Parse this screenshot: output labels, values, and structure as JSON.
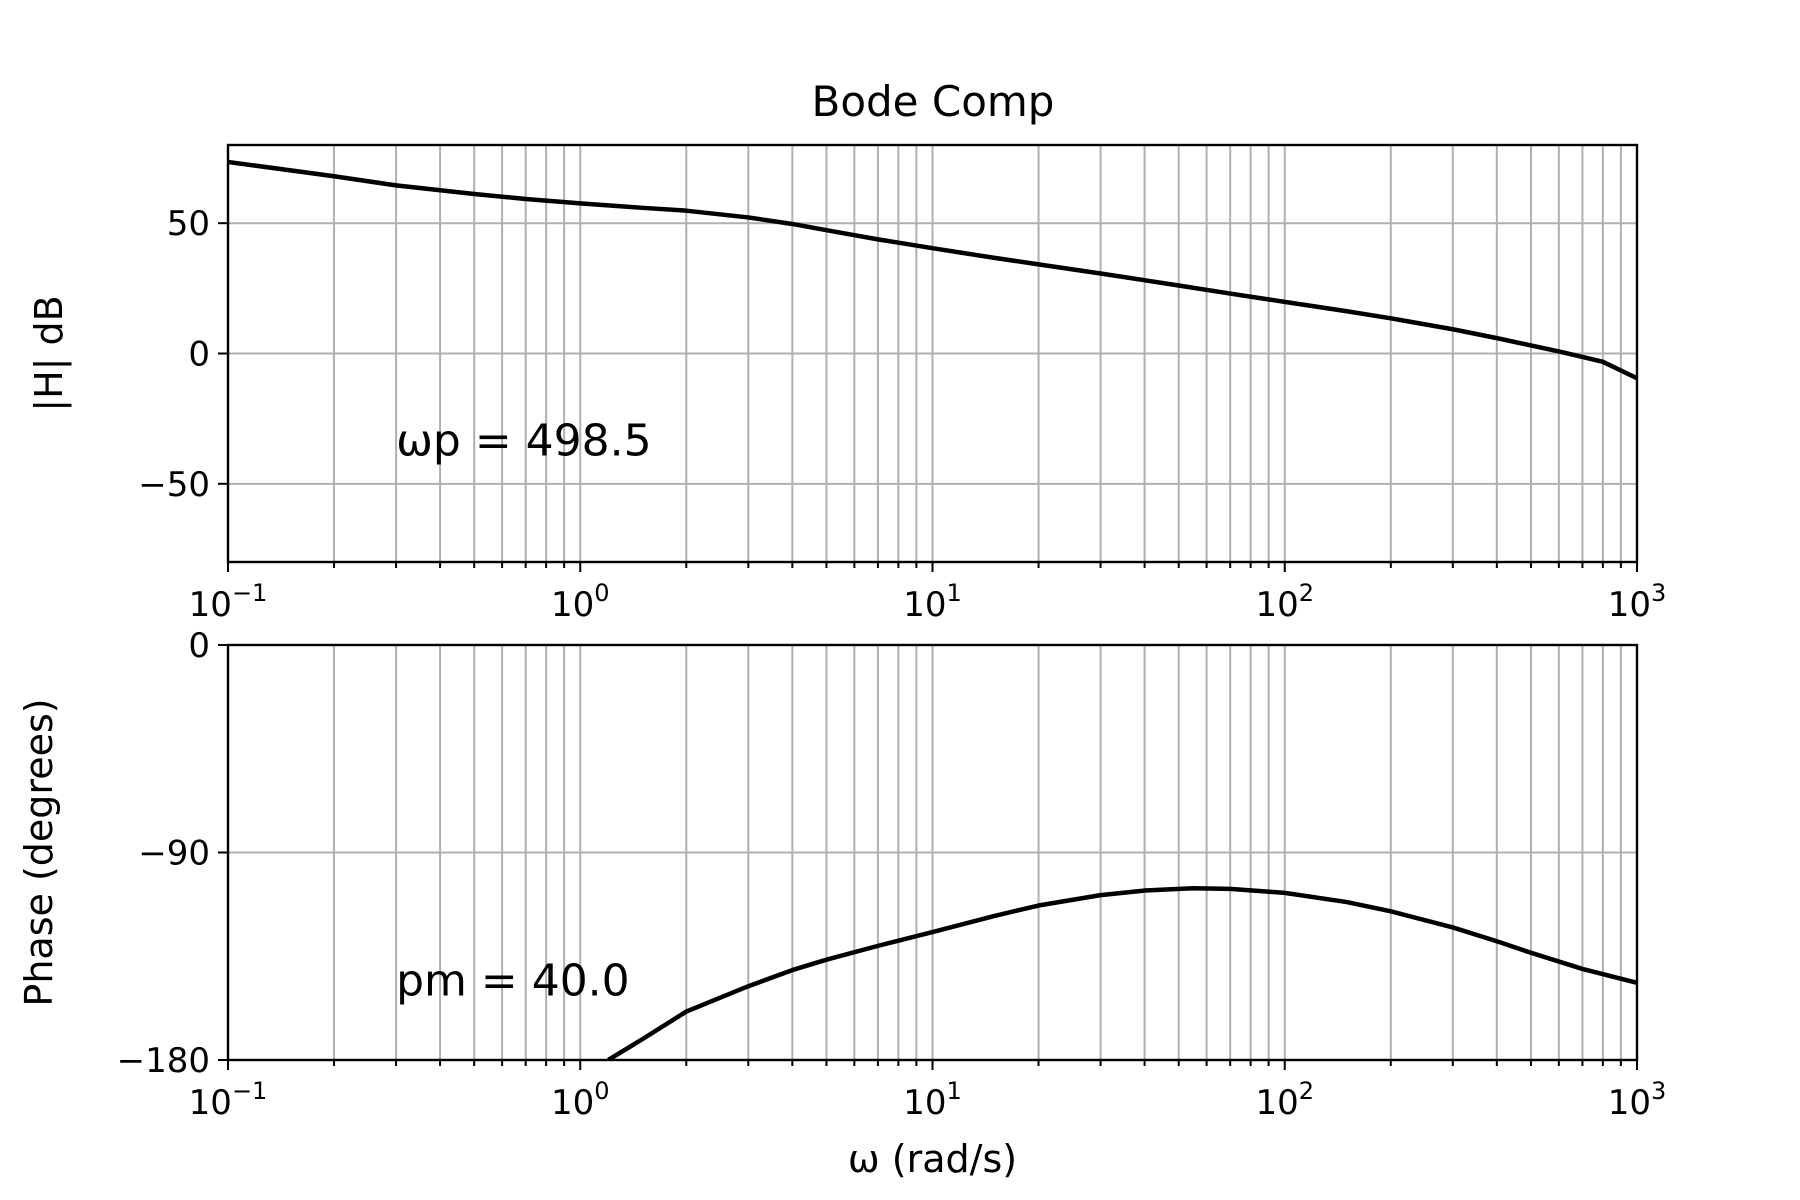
{
  "chart_data": [
    {
      "type": "line",
      "title": "Bode Comp",
      "ylabel": "|H| dB",
      "xlabel": "",
      "xscale": "log",
      "xlim": [
        0.1,
        1000
      ],
      "ylim": [
        -80,
        80
      ],
      "grid": true,
      "x_ticks": [
        0.1,
        1,
        10,
        100,
        1000
      ],
      "x_tick_labels": [
        {
          "base": "10",
          "exp": "−1"
        },
        {
          "base": "10",
          "exp": "0"
        },
        {
          "base": "10",
          "exp": "1"
        },
        {
          "base": "10",
          "exp": "2"
        },
        {
          "base": "10",
          "exp": "3"
        }
      ],
      "y_ticks": [
        50,
        0,
        -50
      ],
      "y_tick_labels": [
        "50",
        "0",
        "−50"
      ],
      "annotation": "ωp = 498.5",
      "annotation_at": [
        0.3,
        -33
      ],
      "series": [
        {
          "color": "#000000",
          "x": [
            0.1,
            0.2,
            0.3,
            0.5,
            0.7,
            1,
            1.5,
            2,
            3,
            4,
            5,
            7,
            10,
            15,
            20,
            30,
            50,
            70,
            100,
            150,
            200,
            300,
            400,
            500,
            600,
            700,
            800,
            1000
          ],
          "y": [
            73.5,
            68.0,
            64.5,
            61.2,
            59.3,
            57.6,
            55.9,
            54.8,
            52.2,
            49.7,
            47.3,
            43.8,
            40.4,
            36.7,
            34.2,
            30.7,
            26.1,
            23.0,
            19.8,
            16.2,
            13.5,
            9.3,
            5.9,
            3.1,
            0.8,
            -1.3,
            -3.2,
            -9.5
          ]
        }
      ]
    },
    {
      "type": "line",
      "title": "",
      "ylabel": "Phase (degrees)",
      "xlabel": "ω (rad/s)",
      "xscale": "log",
      "xlim": [
        0.1,
        1000
      ],
      "ylim": [
        -180,
        0
      ],
      "grid": true,
      "x_ticks": [
        0.1,
        1,
        10,
        100,
        1000
      ],
      "x_tick_labels": [
        {
          "base": "10",
          "exp": "−1"
        },
        {
          "base": "10",
          "exp": "0"
        },
        {
          "base": "10",
          "exp": "1"
        },
        {
          "base": "10",
          "exp": "2"
        },
        {
          "base": "10",
          "exp": "3"
        }
      ],
      "y_ticks": [
        0,
        -90,
        -180
      ],
      "y_tick_labels": [
        "0",
        "−90",
        "−180"
      ],
      "annotation": "pm = 40.0",
      "annotation_at": [
        0.3,
        -145
      ],
      "series": [
        {
          "color": "#000000",
          "x": [
            1.2,
            1.5,
            2,
            3,
            4,
            5,
            7,
            10,
            15,
            20,
            30,
            40,
            55,
            70,
            100,
            150,
            200,
            300,
            400,
            500,
            700,
            1000
          ],
          "y": [
            -180,
            -171,
            -159,
            -148,
            -141,
            -136.5,
            -130.5,
            -124.5,
            -117.5,
            -113,
            -108.5,
            -106.5,
            -105.5,
            -105.8,
            -107.5,
            -111.5,
            -115.5,
            -122.5,
            -128.5,
            -133.5,
            -140.5,
            -146.5
          ]
        }
      ]
    }
  ]
}
